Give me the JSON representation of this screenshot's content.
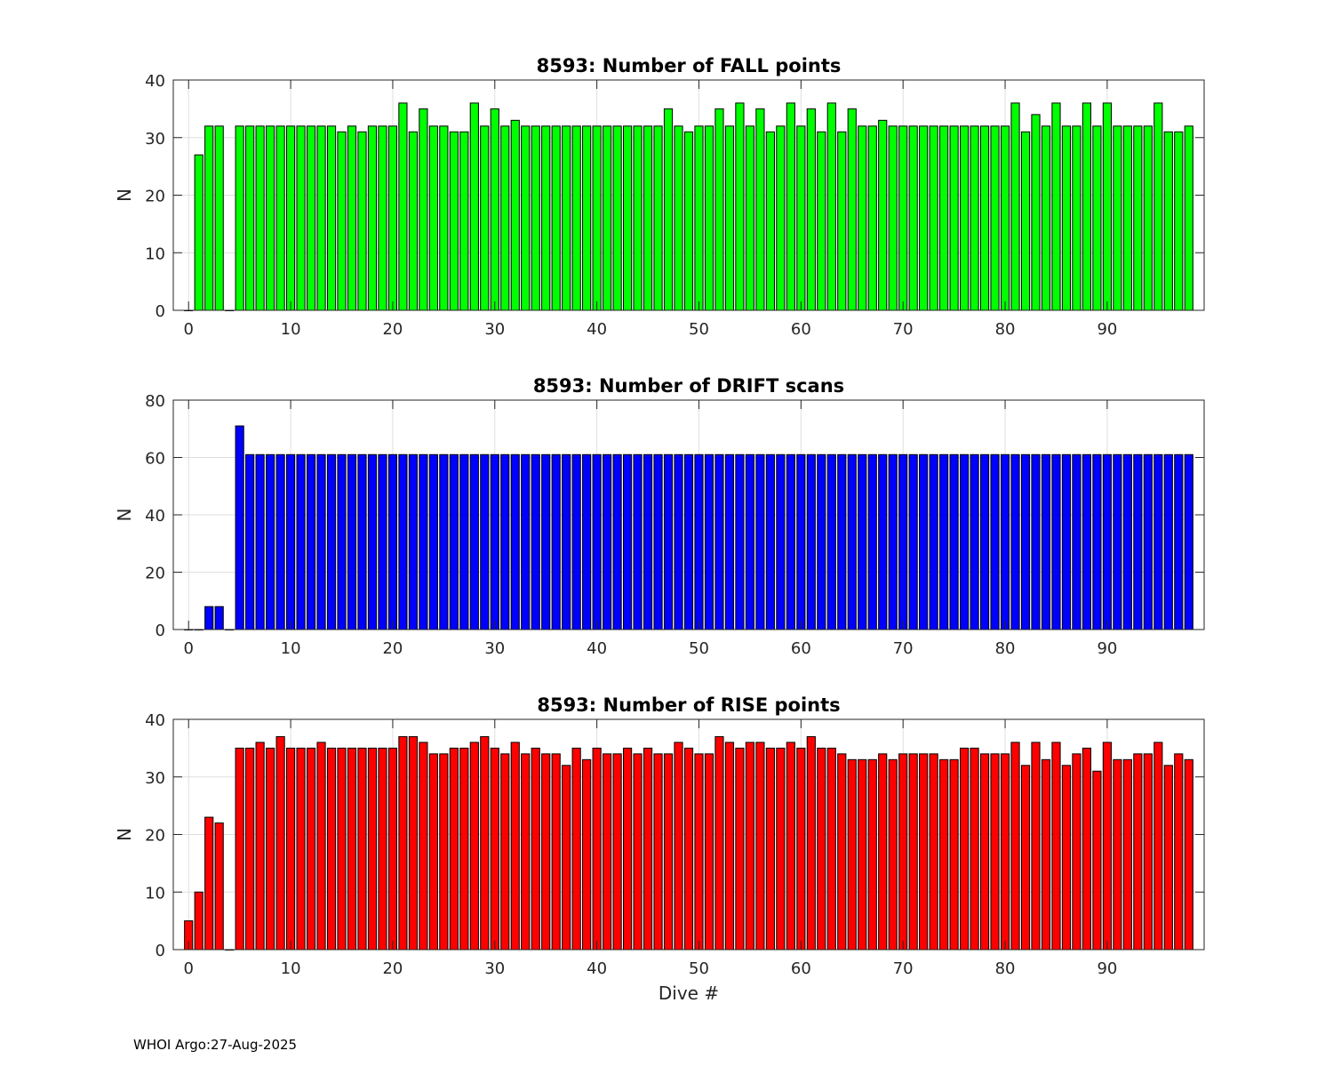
{
  "footer": "WHOI Argo:27-Aug-2025",
  "chart_data": [
    {
      "type": "bar",
      "title": "8593: Number of FALL points",
      "xlabel": "",
      "ylabel": "N",
      "color": "#00ff00",
      "xlim": [
        -1.5,
        99.5
      ],
      "ylim": [
        0,
        40
      ],
      "xticks": [
        0,
        10,
        20,
        30,
        40,
        50,
        60,
        70,
        80,
        90
      ],
      "yticks": [
        0,
        10,
        20,
        30,
        40
      ],
      "grid": true,
      "x": [
        0,
        1,
        2,
        3,
        4,
        5,
        6,
        7,
        8,
        9,
        10,
        11,
        12,
        13,
        14,
        15,
        16,
        17,
        18,
        19,
        20,
        21,
        22,
        23,
        24,
        25,
        26,
        27,
        28,
        29,
        30,
        31,
        32,
        33,
        34,
        35,
        36,
        37,
        38,
        39,
        40,
        41,
        42,
        43,
        44,
        45,
        46,
        47,
        48,
        49,
        50,
        51,
        52,
        53,
        54,
        55,
        56,
        57,
        58,
        59,
        60,
        61,
        62,
        63,
        64,
        65,
        66,
        67,
        68,
        69,
        70,
        71,
        72,
        73,
        74,
        75,
        76,
        77,
        78,
        79,
        80,
        81,
        82,
        83,
        84,
        85,
        86,
        87,
        88,
        89,
        90,
        91,
        92,
        93,
        94,
        95,
        96,
        97,
        98
      ],
      "values": [
        0,
        27,
        32,
        32,
        0,
        32,
        32,
        32,
        32,
        32,
        32,
        32,
        32,
        32,
        32,
        31,
        32,
        31,
        32,
        32,
        32,
        36,
        31,
        35,
        32,
        32,
        31,
        31,
        36,
        32,
        35,
        32,
        33,
        32,
        32,
        32,
        32,
        32,
        32,
        32,
        32,
        32,
        32,
        32,
        32,
        32,
        32,
        35,
        32,
        31,
        32,
        32,
        35,
        32,
        36,
        32,
        35,
        31,
        32,
        36,
        32,
        35,
        31,
        36,
        31,
        35,
        32,
        32,
        33,
        32,
        32,
        32,
        32,
        32,
        32,
        32,
        32,
        32,
        32,
        32,
        32,
        36,
        31,
        34,
        32,
        36,
        32,
        32,
        36,
        32,
        36,
        32,
        32,
        32,
        32,
        36,
        31,
        31,
        32
      ]
    },
    {
      "type": "bar",
      "title": "8593: Number of DRIFT scans",
      "xlabel": "",
      "ylabel": "N",
      "color": "#0000ff",
      "xlim": [
        -1.5,
        99.5
      ],
      "ylim": [
        0,
        80
      ],
      "xticks": [
        0,
        10,
        20,
        30,
        40,
        50,
        60,
        70,
        80,
        90
      ],
      "yticks": [
        0,
        20,
        40,
        60,
        80
      ],
      "grid": true,
      "x": [
        0,
        1,
        2,
        3,
        4,
        5,
        6,
        7,
        8,
        9,
        10,
        11,
        12,
        13,
        14,
        15,
        16,
        17,
        18,
        19,
        20,
        21,
        22,
        23,
        24,
        25,
        26,
        27,
        28,
        29,
        30,
        31,
        32,
        33,
        34,
        35,
        36,
        37,
        38,
        39,
        40,
        41,
        42,
        43,
        44,
        45,
        46,
        47,
        48,
        49,
        50,
        51,
        52,
        53,
        54,
        55,
        56,
        57,
        58,
        59,
        60,
        61,
        62,
        63,
        64,
        65,
        66,
        67,
        68,
        69,
        70,
        71,
        72,
        73,
        74,
        75,
        76,
        77,
        78,
        79,
        80,
        81,
        82,
        83,
        84,
        85,
        86,
        87,
        88,
        89,
        90,
        91,
        92,
        93,
        94,
        95,
        96,
        97,
        98
      ],
      "values": [
        0,
        0,
        8,
        8,
        0,
        71,
        61,
        61,
        61,
        61,
        61,
        61,
        61,
        61,
        61,
        61,
        61,
        61,
        61,
        61,
        61,
        61,
        61,
        61,
        61,
        61,
        61,
        61,
        61,
        61,
        61,
        61,
        61,
        61,
        61,
        61,
        61,
        61,
        61,
        61,
        61,
        61,
        61,
        61,
        61,
        61,
        61,
        61,
        61,
        61,
        61,
        61,
        61,
        61,
        61,
        61,
        61,
        61,
        61,
        61,
        61,
        61,
        61,
        61,
        61,
        61,
        61,
        61,
        61,
        61,
        61,
        61,
        61,
        61,
        61,
        61,
        61,
        61,
        61,
        61,
        61,
        61,
        61,
        61,
        61,
        61,
        61,
        61,
        61,
        61,
        61,
        61,
        61,
        61,
        61,
        61,
        61,
        61,
        61
      ]
    },
    {
      "type": "bar",
      "title": "8593: Number of RISE points",
      "xlabel": "Dive #",
      "ylabel": "N",
      "color": "#ff0000",
      "xlim": [
        -1.5,
        99.5
      ],
      "ylim": [
        0,
        40
      ],
      "xticks": [
        0,
        10,
        20,
        30,
        40,
        50,
        60,
        70,
        80,
        90
      ],
      "yticks": [
        0,
        10,
        20,
        30,
        40
      ],
      "grid": true,
      "x": [
        0,
        1,
        2,
        3,
        4,
        5,
        6,
        7,
        8,
        9,
        10,
        11,
        12,
        13,
        14,
        15,
        16,
        17,
        18,
        19,
        20,
        21,
        22,
        23,
        24,
        25,
        26,
        27,
        28,
        29,
        30,
        31,
        32,
        33,
        34,
        35,
        36,
        37,
        38,
        39,
        40,
        41,
        42,
        43,
        44,
        45,
        46,
        47,
        48,
        49,
        50,
        51,
        52,
        53,
        54,
        55,
        56,
        57,
        58,
        59,
        60,
        61,
        62,
        63,
        64,
        65,
        66,
        67,
        68,
        69,
        70,
        71,
        72,
        73,
        74,
        75,
        76,
        77,
        78,
        79,
        80,
        81,
        82,
        83,
        84,
        85,
        86,
        87,
        88,
        89,
        90,
        91,
        92,
        93,
        94,
        95,
        96,
        97,
        98
      ],
      "values": [
        5,
        10,
        23,
        22,
        0,
        35,
        35,
        36,
        35,
        37,
        35,
        35,
        35,
        36,
        35,
        35,
        35,
        35,
        35,
        35,
        35,
        37,
        37,
        36,
        34,
        34,
        35,
        35,
        36,
        37,
        35,
        34,
        36,
        34,
        35,
        34,
        34,
        32,
        35,
        33,
        35,
        34,
        34,
        35,
        34,
        35,
        34,
        34,
        36,
        35,
        34,
        34,
        37,
        36,
        35,
        36,
        36,
        35,
        35,
        36,
        35,
        37,
        35,
        35,
        34,
        33,
        33,
        33,
        34,
        33,
        34,
        34,
        34,
        34,
        33,
        33,
        35,
        35,
        34,
        34,
        34,
        36,
        32,
        36,
        33,
        36,
        32,
        34,
        35,
        31,
        36,
        33,
        33,
        34,
        34,
        36,
        32,
        34,
        33
      ]
    }
  ]
}
